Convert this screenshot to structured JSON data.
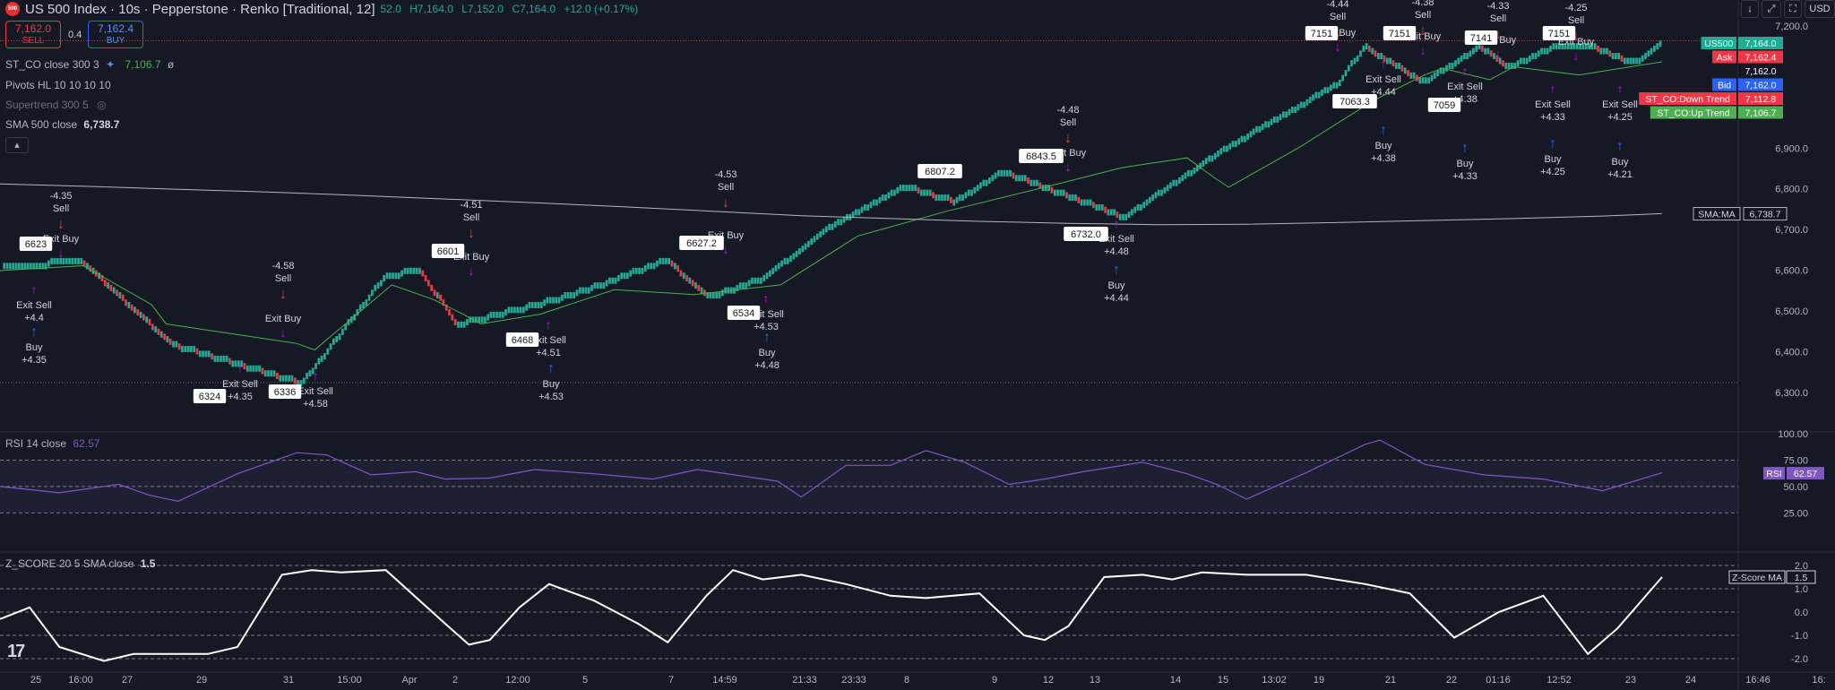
{
  "header": {
    "title": "US 500 Index · 10s · Pepperstone · Renko [Traditional, 12]",
    "logo_text": "500",
    "ohlc": [
      "52.0",
      "H7,164.0",
      "L7,152.0",
      "C7,164.0",
      "+12.0 (+0.17%)"
    ],
    "sell_price": "7,162.0",
    "sell_label": "SELL",
    "spread": "0.4",
    "buy_price": "7,162.4",
    "buy_label": "BUY",
    "currency": "USD"
  },
  "legends": {
    "st_co_name": "ST_CO close 300 3",
    "st_co_value": "7,106.7",
    "pivots": "Pivots HL 10 10 10 10",
    "supertrend": "Supertrend 300 5",
    "sma_name": "SMA 500 close",
    "sma_value": "6,738.7",
    "rsi_name": "RSI 14 close",
    "rsi_value": "62.57",
    "zscore_name": "Z_SCORE 20 5 SMA close",
    "zscore_value": "1.5"
  },
  "colors": {
    "background": "#151924",
    "up_brick": "#22ab94",
    "down_brick": "#f23645",
    "buy_arrow": "#2962ff",
    "sell_arrow": "#f23645",
    "exit_arrow": "#d500f9",
    "up_trend_line": "#4caf50",
    "down_trend_line": "#f23645",
    "sma_line": "#b2b5be",
    "rsi_line": "#7e57c2",
    "zscore_line": "#ffffff"
  },
  "price_axis": {
    "labels": [
      "7,200.0",
      "6,900.0",
      "6,800.0",
      "6,700.0",
      "6,600.0",
      "6,500.0",
      "6,400.0",
      "6,300.0"
    ],
    "tags": [
      {
        "name": "US500",
        "value": "7,164.0",
        "color": "#22ab94"
      },
      {
        "name": "Ask",
        "value": "7,162.4",
        "color": "#f23645"
      },
      {
        "name": "",
        "value": "7,162.0",
        "color": "#131722"
      },
      {
        "name": "Bid",
        "value": "7,162.0",
        "color": "#2962ff"
      },
      {
        "name": "ST_CO:Down Trend",
        "value": "7,112.8",
        "color": "#f23645"
      },
      {
        "name": "ST_CO:Up Trend",
        "value": "7,106.7",
        "color": "#4caf50"
      }
    ],
    "sma_tag": {
      "name": "SMA:MA",
      "value": "6,738.7"
    }
  },
  "rsi_axis": {
    "labels": [
      "100.00",
      "75.00",
      "50.00",
      "25.00"
    ],
    "tag_name": "RSI",
    "tag_value": "62.57"
  },
  "zscore_axis": {
    "labels": [
      "2.0",
      "1.0",
      "0.0",
      "-1.0",
      "-2.0"
    ],
    "tag_name": "Z-Score MA",
    "tag_value": "1.5"
  },
  "time_axis": [
    "25",
    "16:00",
    "27",
    "29",
    "31",
    "15:00",
    "Apr",
    "2",
    "12:00",
    "5",
    "7",
    "14:59",
    "21:33",
    "23:33",
    "8",
    "9",
    "12",
    "13",
    "14",
    "15",
    "13:02",
    "19",
    "21",
    "22",
    "01:16",
    "12:52",
    "23",
    "24",
    "16:46",
    "16:"
  ],
  "signals": {
    "sells": [
      {
        "label": "Sell",
        "value": "-4.35"
      },
      {
        "label": "Sell",
        "value": "-4.58"
      },
      {
        "label": "Sell",
        "value": "-4.51"
      },
      {
        "label": "Sell",
        "value": "-4.53"
      },
      {
        "label": "Sell",
        "value": "-4.48"
      },
      {
        "label": "Sell",
        "value": "-4.44"
      },
      {
        "label": "Sell",
        "value": "-4.38"
      },
      {
        "label": "Sell",
        "value": "-4.33"
      },
      {
        "label": "Sell",
        "value": "-4.25"
      }
    ],
    "buys": [
      {
        "label": "Buy",
        "value": "+4.35"
      },
      {
        "label": "Buy",
        "value": "+4.53"
      },
      {
        "label": "Buy",
        "value": "+4.48"
      },
      {
        "label": "Buy",
        "value": "+4.44"
      },
      {
        "label": "Buy",
        "value": "+4.38"
      },
      {
        "label": "Buy",
        "value": "+4.33"
      },
      {
        "label": "Buy",
        "value": "+4.25"
      },
      {
        "label": "Buy",
        "value": "+4.21"
      }
    ],
    "exit_buys": [
      {
        "label": "Exit Buy",
        "value": "-4.35"
      },
      {
        "label": "Exit Buy",
        "value": "-4.58"
      },
      {
        "label": "Exit Buy",
        "value": "-4.51"
      },
      {
        "label": "Exit Buy",
        "value": "-4.53"
      },
      {
        "label": "Exit Buy",
        "value": "-4.48"
      },
      {
        "label": "Exit Buy",
        "value": "-4.44"
      },
      {
        "label": "Exit Buy",
        "value": "-4.38"
      },
      {
        "label": "Exit Buy",
        "value": "-4.33"
      },
      {
        "label": "Exit Buy",
        "value": "-4.25"
      }
    ],
    "exit_sells": [
      {
        "label": "Exit Sell",
        "value": "+4.4"
      },
      {
        "label": "Exit Sell",
        "value": "+4.35"
      },
      {
        "label": "Exit Sell",
        "value": "+4.58"
      },
      {
        "label": "Exit Sell",
        "value": "+4.51"
      },
      {
        "label": "Exit Sell",
        "value": "+4.53"
      },
      {
        "label": "Exit Sell",
        "value": "+4.48"
      },
      {
        "label": "Exit Sell",
        "value": "+4.44"
      },
      {
        "label": "Exit Sell",
        "value": "+4.38"
      },
      {
        "label": "Exit Sell",
        "value": "+4.33"
      },
      {
        "label": "Exit Sell",
        "value": "+4.25"
      }
    ]
  },
  "pivot_labels": [
    "6623",
    "6324",
    "6336",
    "6601",
    "6468",
    "6627.2",
    "6534",
    "6807.2",
    "6843.5",
    "6732.0",
    "7151",
    "7063.3",
    "7151",
    "7059",
    "7141",
    "7151"
  ],
  "chart_data": {
    "type": "line",
    "title": "US 500 Index · 10s · Pepperstone · Renko [Traditional, 12]",
    "brick_size": 12,
    "ylim": [
      6240,
      7220
    ],
    "legend_position": "top-left",
    "grid": false,
    "series": [
      {
        "name": "ST_CO close 300 3",
        "x": [
          0,
          28,
          51,
          56,
          100,
          106,
          132,
          146,
          156,
          162,
          182,
          207,
          234,
          263,
          289,
          319,
          352,
          378,
          400,
          409,
          414,
          438,
          463,
          480,
          486,
          502,
          510,
          532,
          560
        ],
        "values": [
          6599,
          6611,
          6516,
          6468,
          6420,
          6404,
          6564,
          6528,
          6492,
          6468,
          6492,
          6552,
          6540,
          6564,
          6684,
          6745,
          6804,
          6852,
          6876,
          6828,
          6804,
          6903,
          7018,
          7080,
          7096,
          7068,
          7100,
          7080,
          7112
        ]
      },
      {
        "name": "SMA 500 close",
        "x": [
          0,
          30,
          60,
          90,
          120,
          150,
          180,
          210,
          240,
          270,
          300,
          330,
          360,
          390,
          420,
          450,
          480,
          510,
          540,
          560
        ],
        "values": [
          6812,
          6806,
          6799,
          6792,
          6784,
          6775,
          6766,
          6756,
          6745,
          6734,
          6727,
          6720,
          6715,
          6712,
          6713,
          6717,
          6722,
          6727,
          6733,
          6739
        ]
      },
      {
        "name": "RSI 14 close",
        "x": [
          0,
          20,
          40,
          50,
          60,
          80,
          100,
          110,
          125,
          140,
          150,
          165,
          180,
          200,
          220,
          235,
          250,
          262,
          270,
          285,
          300,
          312,
          325,
          340,
          352,
          365,
          385,
          400,
          410,
          420,
          440,
          460,
          465,
          480,
          500,
          520,
          540,
          560
        ],
        "values": [
          50,
          44,
          52,
          42,
          36,
          62,
          82,
          80,
          61,
          64,
          57,
          58,
          66,
          62,
          57,
          66,
          60,
          55,
          40,
          70,
          70,
          84,
          73,
          52,
          57,
          64,
          73,
          62,
          52,
          38,
          63,
          90,
          94,
          71,
          61,
          57,
          46,
          63
        ]
      },
      {
        "name": "Z_SCORE 20 5 SMA close",
        "x": [
          0,
          10,
          20,
          35,
          45,
          70,
          80,
          95,
          105,
          115,
          130,
          150,
          158,
          165,
          175,
          185,
          200,
          215,
          225,
          238,
          247,
          257,
          270,
          285,
          300,
          312,
          330,
          345,
          352,
          360,
          372,
          385,
          395,
          405,
          420,
          440,
          460,
          475,
          490,
          505,
          520,
          535,
          545,
          560
        ],
        "values": [
          -0.3,
          0.2,
          -1.5,
          -2.1,
          -1.8,
          -1.8,
          -1.5,
          1.6,
          1.8,
          1.7,
          1.8,
          -0.5,
          -1.4,
          -1.2,
          0.2,
          1.2,
          0.5,
          -0.5,
          -1.3,
          0.7,
          1.8,
          1.4,
          1.6,
          1.2,
          0.7,
          0.6,
          0.8,
          -1.0,
          -1.2,
          -0.6,
          1.5,
          1.6,
          1.4,
          1.7,
          1.6,
          1.6,
          1.2,
          0.8,
          -1.1,
          0.0,
          0.7,
          -1.8,
          -0.7,
          1.5
        ]
      }
    ]
  }
}
